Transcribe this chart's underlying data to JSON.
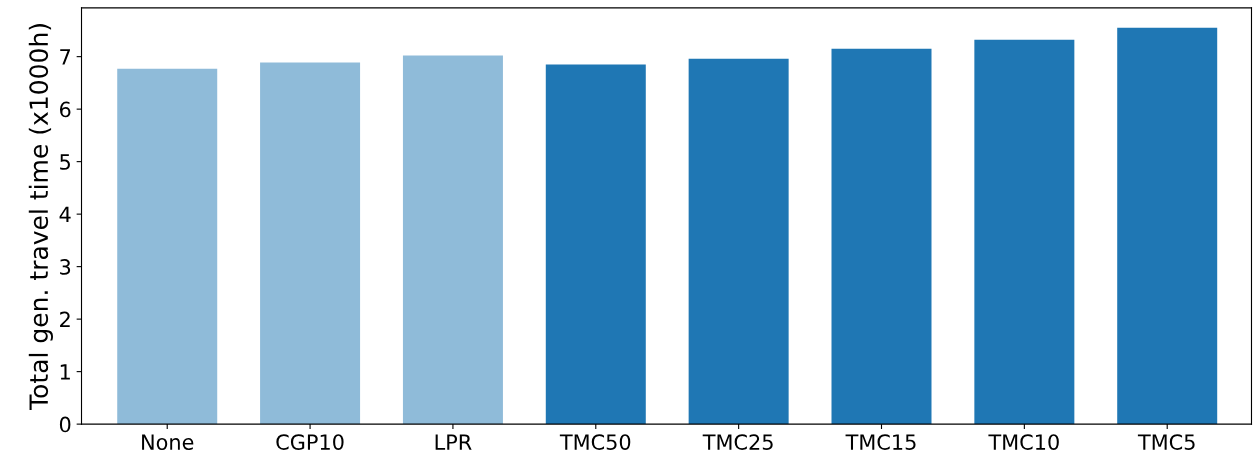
{
  "chart_data": {
    "type": "bar",
    "ylabel": "Total gen. travel time (x1000h)",
    "categories": [
      "None",
      "CGP10",
      "LPR",
      "TMC50",
      "TMC25",
      "TMC15",
      "TMC10",
      "TMC5"
    ],
    "values": [
      6.77,
      6.89,
      7.02,
      6.85,
      6.96,
      7.15,
      7.32,
      7.55
    ],
    "colors": [
      "#8fbbd9",
      "#8fbbd9",
      "#8fbbd9",
      "#1f77b4",
      "#1f77b4",
      "#1f77b4",
      "#1f77b4",
      "#1f77b4"
    ],
    "ylim": [
      0,
      7.93
    ],
    "yticks": [
      0,
      1,
      2,
      3,
      4,
      5,
      6,
      7
    ],
    "grid": false,
    "legend": false
  }
}
